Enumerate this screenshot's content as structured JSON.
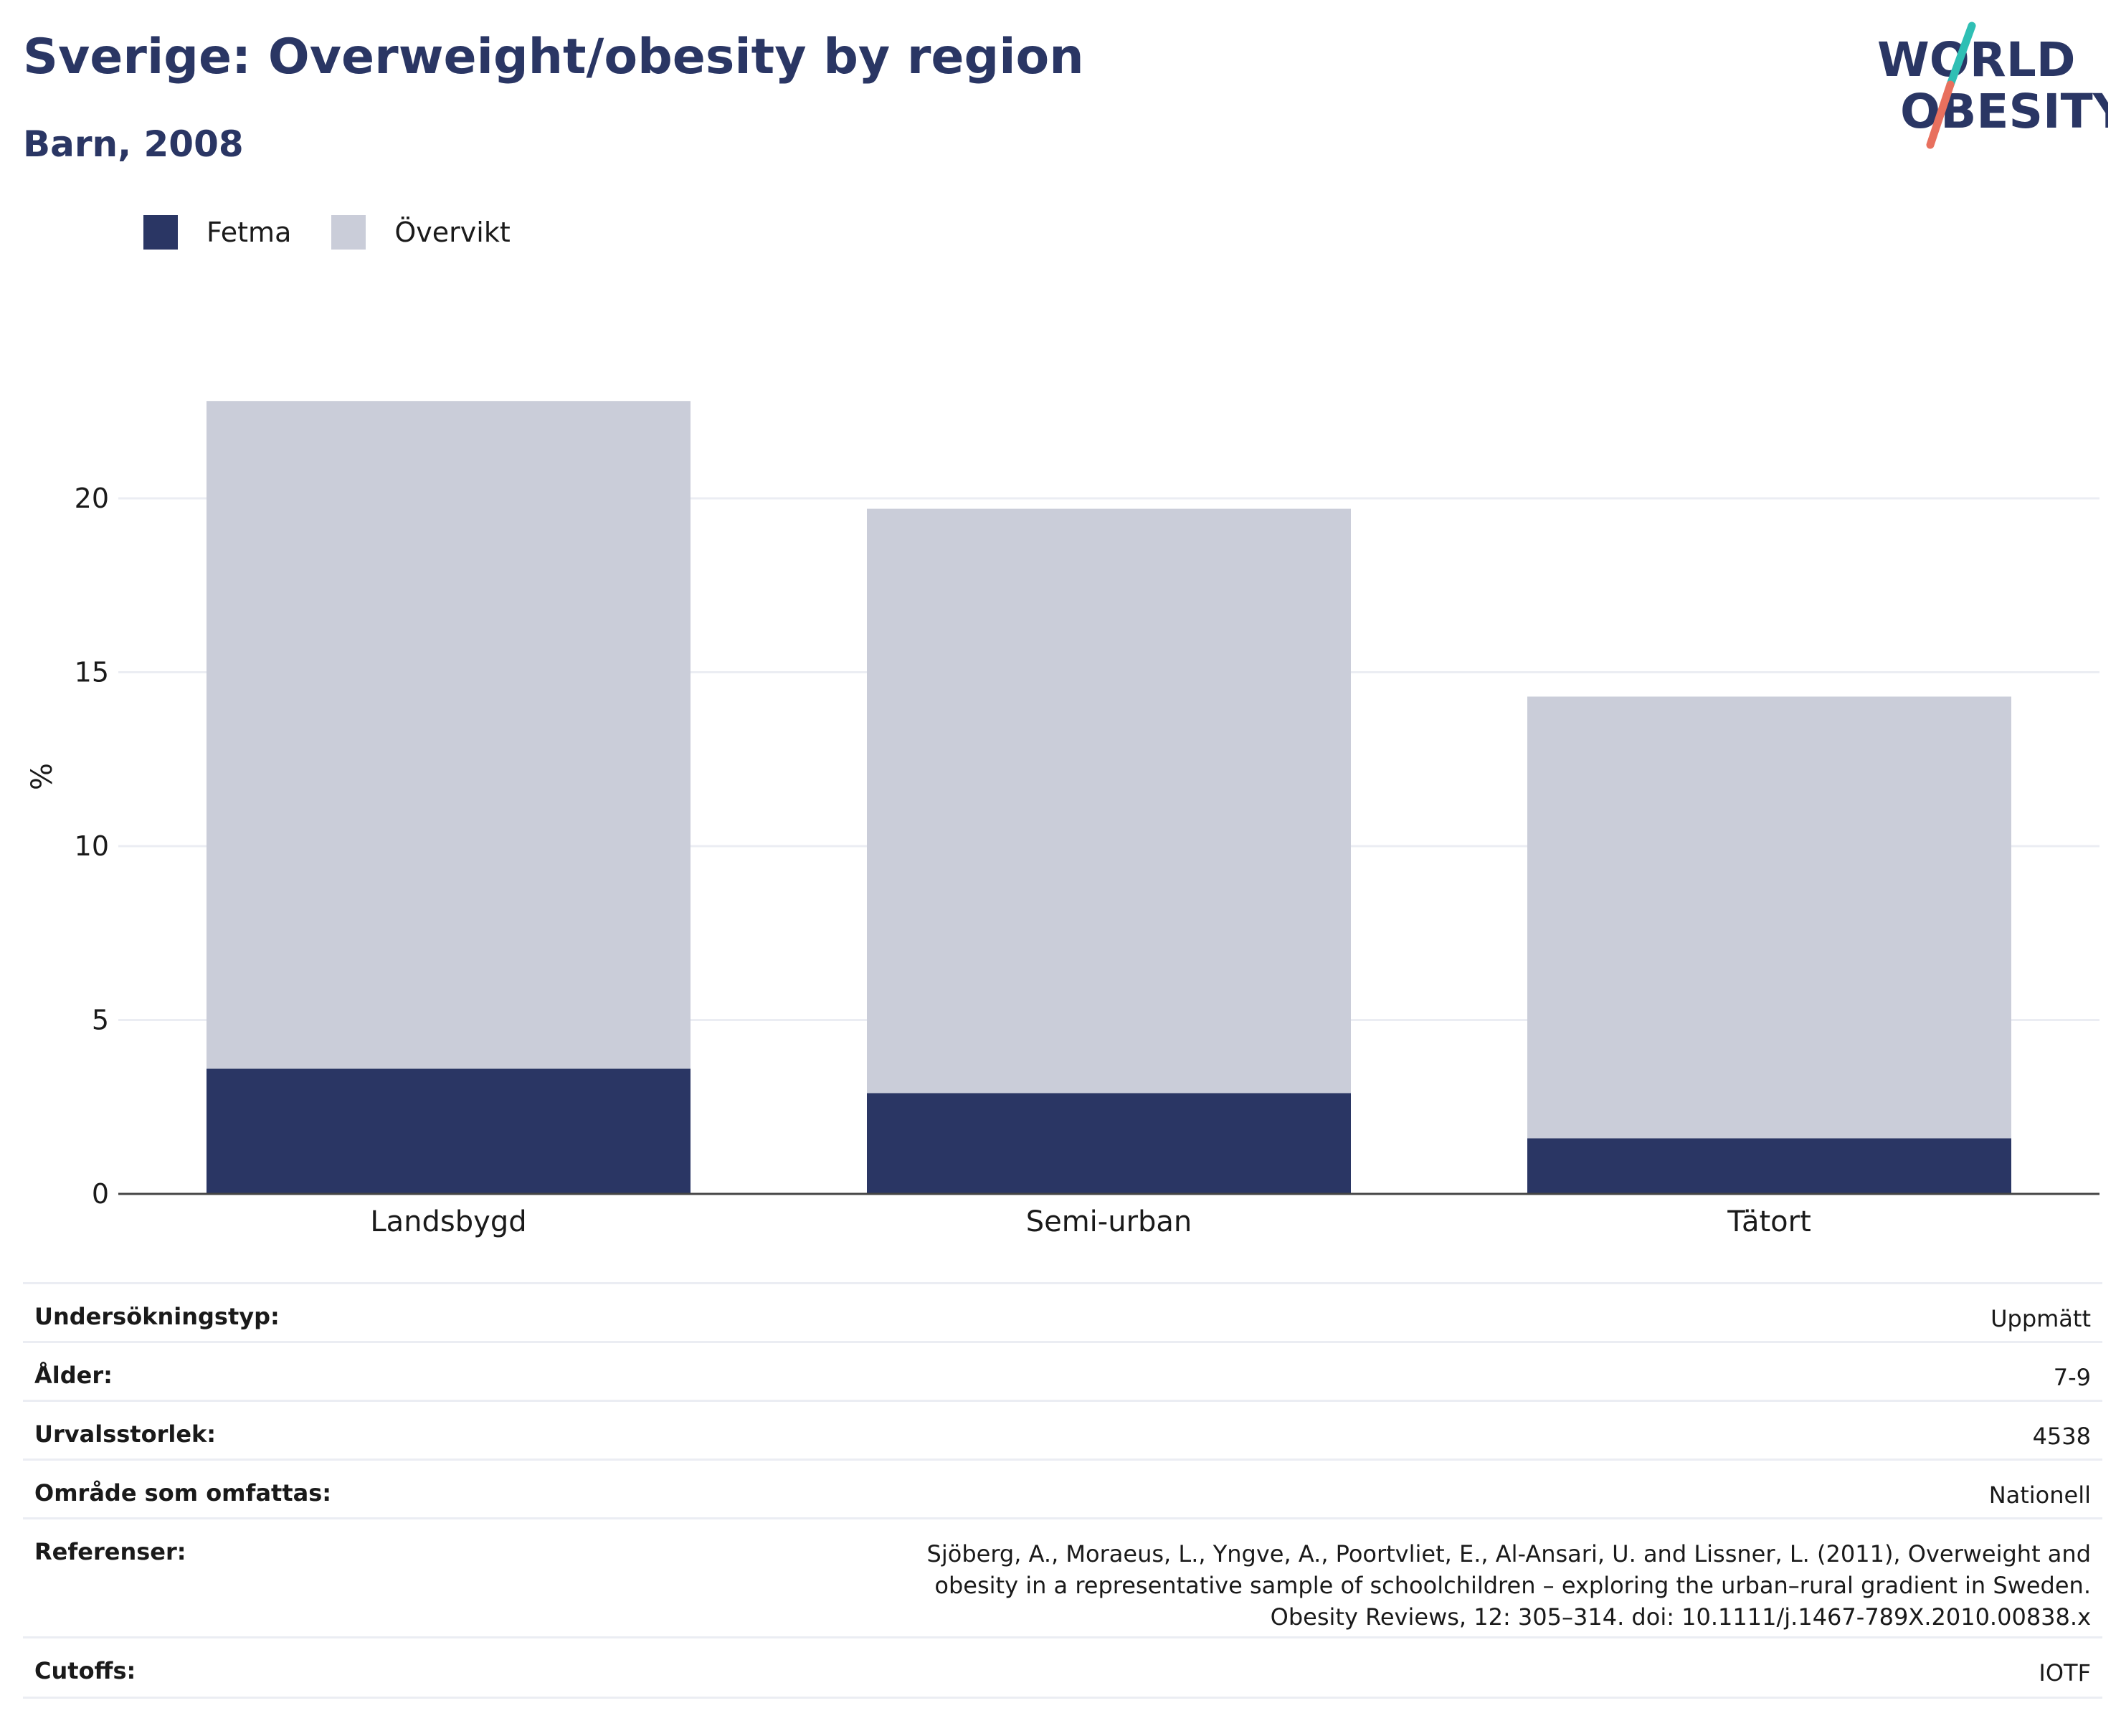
{
  "header": {
    "title": "Sverige: Overweight/obesity by region",
    "subtitle": "Barn, 2008",
    "logo_line1": "WORLD",
    "logo_line2": "OBESITY"
  },
  "colors": {
    "fetma": "#2a3664",
    "overvikt": "#cacdd9",
    "title": "#2a3664",
    "logo_teal": "#2fbfb4",
    "logo_coral": "#e8705e"
  },
  "legend": [
    {
      "label": "Fetma",
      "color": "#2a3664"
    },
    {
      "label": "Övervikt",
      "color": "#cacdd9"
    }
  ],
  "chart_data": {
    "type": "bar",
    "stacked": true,
    "categories": [
      "Landsbygd",
      "Semi-urban",
      "Tätort"
    ],
    "series": [
      {
        "name": "Fetma",
        "values": [
          3.6,
          2.9,
          1.6
        ]
      },
      {
        "name": "Övervikt",
        "values": [
          19.2,
          16.8,
          12.7
        ]
      }
    ],
    "ylabel": "%",
    "ylim": [
      0,
      24
    ],
    "yticks": [
      0,
      5,
      10,
      15,
      20
    ],
    "grid": true,
    "legend_position": "top-left"
  },
  "info_rows": [
    {
      "key": "Undersökningstyp:",
      "value": "Uppmätt"
    },
    {
      "key": "Ålder:",
      "value": "7-9"
    },
    {
      "key": "Urvalsstorlek:",
      "value": "4538"
    },
    {
      "key": "Område som omfattas:",
      "value": "Nationell"
    },
    {
      "key": "Referenser:",
      "value": "Sjöberg, A., Moraeus, L., Yngve, A., Poortvliet, E., Al-Ansari, U. and Lissner, L. (2011), Overweight and obesity in a representative sample of schoolchildren – exploring the urban–rural gradient in Sweden. Obesity Reviews, 12: 305–314. doi: 10.1111/j.1467-789X.2010.00838.x"
    },
    {
      "key": "Cutoffs:",
      "value": "IOTF"
    }
  ]
}
